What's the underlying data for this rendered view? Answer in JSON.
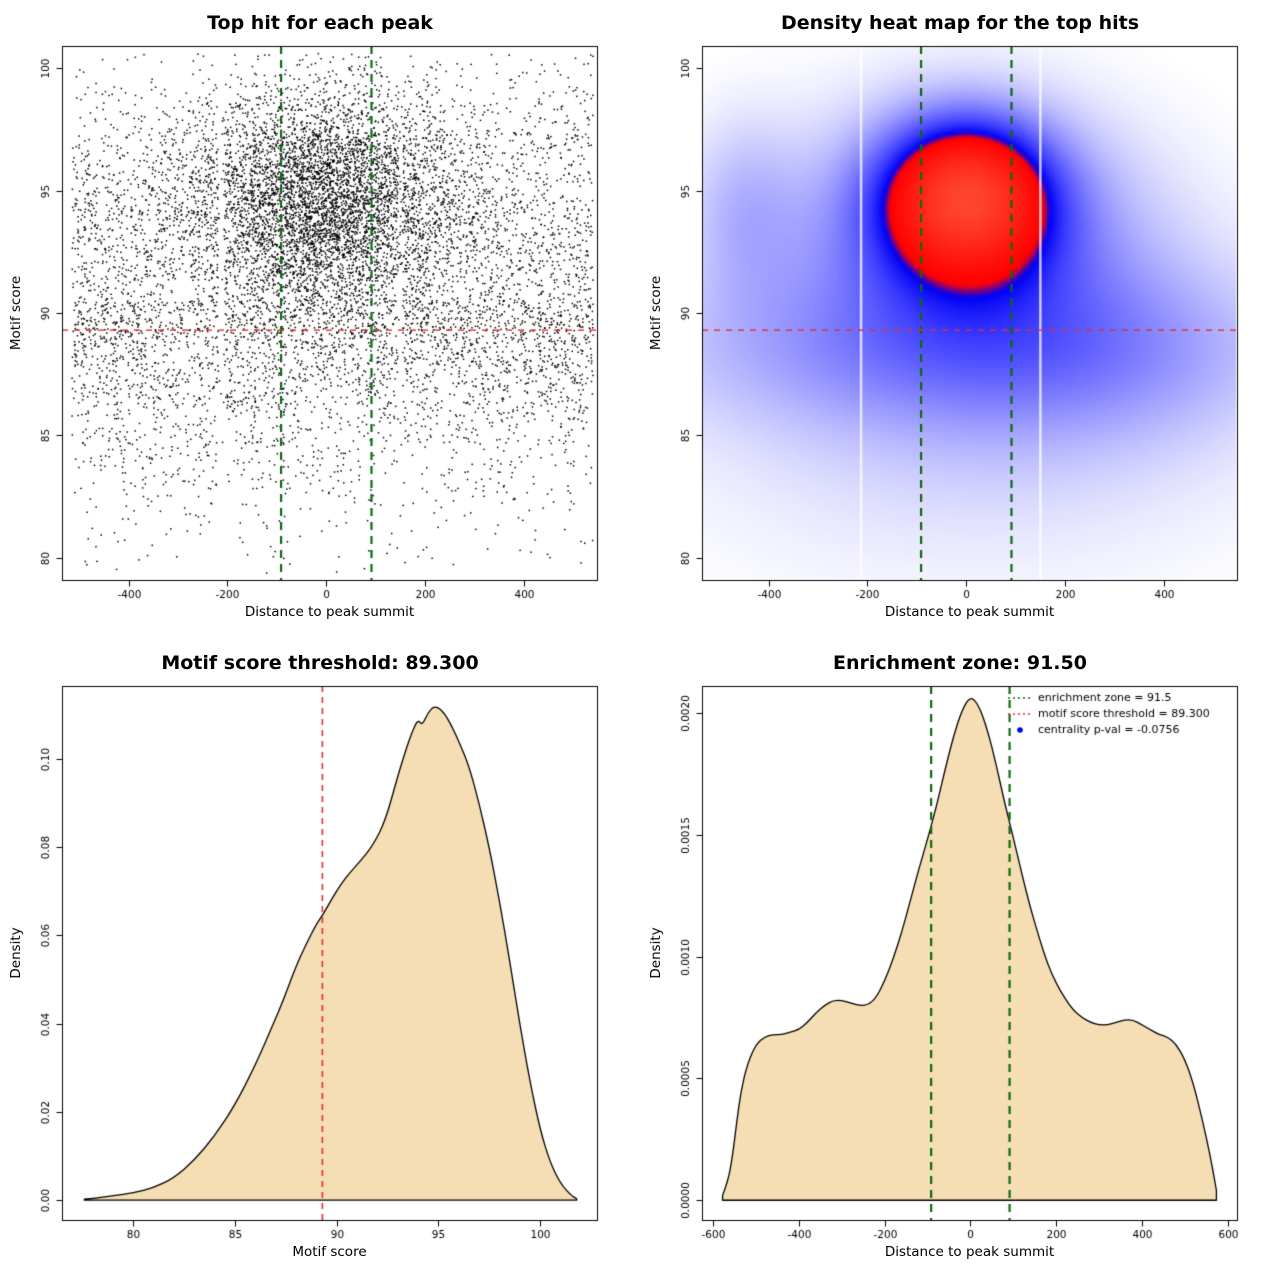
{
  "figure": {
    "background": "#ffffff"
  },
  "chart_data": [
    {
      "type": "scatter",
      "title": "Top hit for each peak",
      "xlabel": "Distance to peak summit",
      "ylabel": "Motif score",
      "xlim": [
        -535,
        548
      ],
      "ylim": [
        79.1,
        100.9
      ],
      "xticks": [
        -400,
        -200,
        0,
        200,
        400
      ],
      "xtick_labels": [
        "-400",
        "-200",
        "0",
        "200",
        "400"
      ],
      "yticks": [
        80,
        85,
        90,
        95,
        100
      ],
      "ytick_labels": [
        "80",
        "85",
        "90",
        "95",
        "100"
      ],
      "points": {
        "n": 11000,
        "seed": 1234,
        "color": "#000000",
        "size": 1.5,
        "components": [
          {
            "weight": 0.42,
            "x": {
              "dist": "normal",
              "mean": 0,
              "sd": 130
            },
            "y": {
              "dist": "normal",
              "mean": 94.7,
              "sd": 2.3
            }
          },
          {
            "weight": 0.38,
            "x": {
              "dist": "uniform",
              "min": -515,
              "max": 540
            },
            "y": {
              "dist": "normal",
              "mean": 93.0,
              "sd": 3.5
            }
          },
          {
            "weight": 0.2,
            "x": {
              "dist": "uniform",
              "min": -515,
              "max": 540
            },
            "y": {
              "dist": "neghalfnormal",
              "top": 90.5,
              "sd": 4.5
            }
          }
        ],
        "x_gaps": [
          {
            "x": -213,
            "half_width": 6,
            "drop": 0.8
          },
          {
            "x": 150,
            "half_width": 5,
            "drop": 0.75
          }
        ]
      },
      "vlines": {
        "x": [
          -91.5,
          91.5
        ],
        "color": "#0b6b0b",
        "dash": [
          8,
          6
        ],
        "width": 2.2
      },
      "hlines": {
        "y": [
          89.3
        ],
        "color": "#e03030",
        "dash": [
          6,
          6
        ],
        "width": 1.4
      }
    },
    {
      "type": "heatmap",
      "title": "Density heat map for the top hits",
      "xlabel": "Distance to peak summit",
      "ylabel": "Motif score",
      "xlim": [
        -535,
        548
      ],
      "ylim": [
        79.1,
        100.9
      ],
      "xticks": [
        -400,
        -200,
        0,
        200,
        400
      ],
      "xtick_labels": [
        "-400",
        "-200",
        "0",
        "200",
        "400"
      ],
      "yticks": [
        80,
        85,
        90,
        95,
        100
      ],
      "ytick_labels": [
        "80",
        "85",
        "90",
        "95",
        "100"
      ],
      "density_model": {
        "components": [
          {
            "mx": 0,
            "sx": 115,
            "my": 94.9,
            "sy": 2.1,
            "w": 1.25
          },
          {
            "mx": 0,
            "sx": 200,
            "my": 93.8,
            "sy": 2.9,
            "w": 0.48
          },
          {
            "mx": 0,
            "sx": 320,
            "my": 91.0,
            "sy": 5.0,
            "w": 0.3
          },
          {
            "mx": -60,
            "sx": 470,
            "my": 88.6,
            "sy": 2.4,
            "w": 0.26
          },
          {
            "mx": -455,
            "sx": 80,
            "my": 94.3,
            "sy": 2.6,
            "w": 0.22
          },
          {
            "mx": 320,
            "sx": 240,
            "my": 88.3,
            "sy": 3.0,
            "w": 0.14
          },
          {
            "mx": 0,
            "sx": 500,
            "my": 84.0,
            "sy": 4.5,
            "w": 0.1
          }
        ],
        "white_gap_lines": [
          -213,
          150
        ],
        "colors": {
          "low": "#ffffff",
          "mid": "#0000ff",
          "high": "#ff0000"
        }
      },
      "vlines": {
        "x": [
          -91.5,
          91.5
        ],
        "color": "#0b6b0b",
        "dash": [
          8,
          6
        ],
        "width": 2.2
      },
      "hlines": {
        "y": [
          89.3
        ],
        "color": "#e03030",
        "dash": [
          6,
          6
        ],
        "width": 1.4
      }
    },
    {
      "type": "area",
      "title": "Motif score threshold: 89.300",
      "xlabel": "Motif score",
      "ylabel": "Density",
      "xlim": [
        76.5,
        102.8
      ],
      "ylim": [
        -0.0045,
        0.1165
      ],
      "xticks": [
        80,
        85,
        90,
        95,
        100
      ],
      "xtick_labels": [
        "80",
        "85",
        "90",
        "95",
        "100"
      ],
      "yticks": [
        0,
        0.02,
        0.04,
        0.06,
        0.08,
        0.1
      ],
      "ytick_labels": [
        "0.00",
        "0.02",
        "0.04",
        "0.06",
        "0.08",
        "0.10"
      ],
      "fill": "#f5deb3",
      "stroke": "#000000",
      "stroke_width": 1.3,
      "x": [
        77.6,
        78.2,
        79.0,
        80.0,
        81.0,
        82.0,
        83.0,
        84.0,
        85.0,
        86.0,
        86.8,
        87.4,
        88.0,
        88.5,
        89.0,
        89.3,
        89.8,
        90.2,
        90.7,
        91.2,
        91.8,
        92.4,
        93.0,
        93.4,
        93.7,
        94.0,
        94.2,
        94.5,
        94.8,
        95.2,
        95.6,
        96.0,
        96.5,
        97.0,
        97.5,
        98.0,
        98.5,
        99.0,
        99.5,
        100.0,
        100.5,
        101.0,
        101.5,
        101.8
      ],
      "y": [
        0.0002,
        0.0005,
        0.001,
        0.0016,
        0.0028,
        0.005,
        0.009,
        0.0145,
        0.0215,
        0.0305,
        0.039,
        0.0455,
        0.053,
        0.058,
        0.0625,
        0.0645,
        0.0685,
        0.0715,
        0.0745,
        0.077,
        0.0805,
        0.086,
        0.096,
        0.102,
        0.106,
        0.109,
        0.1075,
        0.1105,
        0.112,
        0.111,
        0.108,
        0.104,
        0.0985,
        0.09,
        0.08,
        0.068,
        0.0545,
        0.04,
        0.027,
        0.016,
        0.0085,
        0.0038,
        0.0012,
        0.0003
      ],
      "vlines": {
        "x": [
          89.3
        ],
        "color": "#e03030",
        "dash": [
          6,
          5
        ],
        "width": 1.6
      }
    },
    {
      "type": "area",
      "title": "Enrichment zone: 91.50",
      "xlabel": "Distance to peak summit",
      "ylabel": "Density",
      "xlim": [
        -626,
        622
      ],
      "ylim": [
        -8.1e-05,
        0.00211
      ],
      "xticks": [
        -600,
        -400,
        -200,
        0,
        200,
        400,
        600
      ],
      "xtick_labels": [
        "-600",
        "-400",
        "-200",
        "0",
        "200",
        "400",
        "600"
      ],
      "yticks": [
        0,
        0.0005,
        0.001,
        0.0015,
        0.002
      ],
      "ytick_labels": [
        "0.0000",
        "0.0005",
        "0.0010",
        "0.0015",
        "0.0020"
      ],
      "fill": "#f5deb3",
      "stroke": "#000000",
      "stroke_width": 1.3,
      "x": [
        -578,
        -565,
        -555,
        -545,
        -535,
        -520,
        -500,
        -480,
        -460,
        -440,
        -420,
        -400,
        -380,
        -360,
        -340,
        -320,
        -300,
        -280,
        -260,
        -240,
        -220,
        -200,
        -180,
        -160,
        -140,
        -120,
        -100,
        -80,
        -60,
        -40,
        -20,
        0,
        20,
        40,
        60,
        80,
        100,
        120,
        140,
        160,
        180,
        200,
        220,
        240,
        260,
        280,
        300,
        320,
        340,
        360,
        380,
        400,
        420,
        440,
        460,
        480,
        500,
        520,
        540,
        560,
        574
      ],
      "y": [
        2e-05,
        8e-05,
        0.00018,
        0.00032,
        0.00045,
        0.00056,
        0.00064,
        0.00067,
        0.00068,
        0.00068,
        0.00069,
        0.0007,
        0.00073,
        0.00077,
        0.0008,
        0.00082,
        0.00082,
        0.00081,
        0.0008,
        0.0008,
        0.00083,
        0.0009,
        0.00099,
        0.0011,
        0.00123,
        0.00136,
        0.00148,
        0.00161,
        0.00176,
        0.0019,
        0.00201,
        0.00207,
        0.00203,
        0.00193,
        0.00179,
        0.00163,
        0.00149,
        0.00134,
        0.0012,
        0.00108,
        0.00097,
        0.00089,
        0.00083,
        0.00078,
        0.00075,
        0.00073,
        0.00072,
        0.00072,
        0.00073,
        0.00074,
        0.00074,
        0.00072,
        0.0007,
        0.00068,
        0.00067,
        0.00064,
        0.00058,
        0.00048,
        0.00034,
        0.00018,
        4e-05
      ],
      "vlines": {
        "x": [
          -91.5,
          91.5
        ],
        "color": "#0b6b0b",
        "dash": [
          8,
          6
        ],
        "width": 2.2
      },
      "legend": {
        "items": [
          {
            "marker": "dotted-line",
            "color": "#0b6b0b",
            "label": "enrichment zone = 91.5"
          },
          {
            "marker": "dotted-line",
            "color": "#e03030",
            "label": "motif score threshold = 89.300"
          },
          {
            "marker": "point",
            "color": "#0000ee",
            "label": "centrality p-val = -0.0756"
          }
        ]
      }
    }
  ]
}
